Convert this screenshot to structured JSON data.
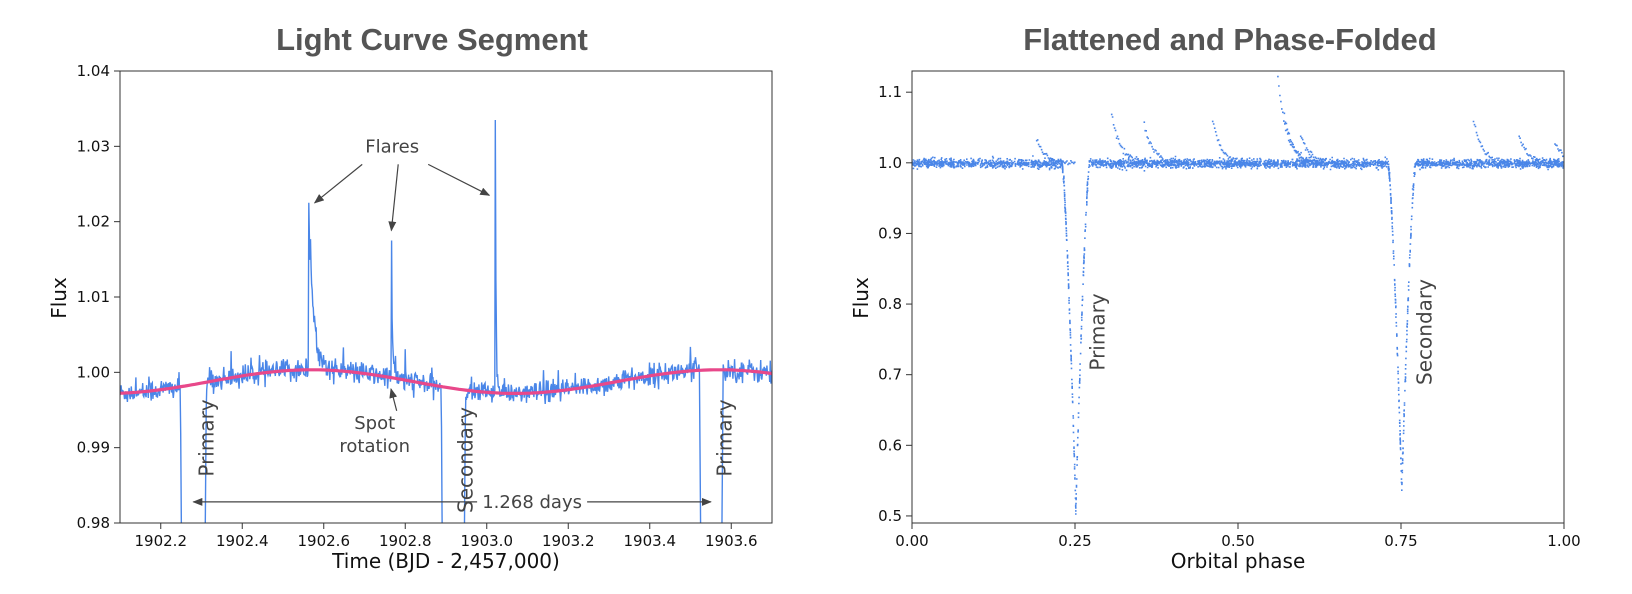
{
  "colors": {
    "flux": "#4a86e8",
    "spot_model": "#e8488a",
    "annotation": "#444444",
    "title": "#555555"
  },
  "chart_data": [
    {
      "type": "line",
      "title": "Light Curve Segment",
      "xlabel": "Time (BJD - 2,457,000)",
      "ylabel": "Flux",
      "xlim": [
        1902.1,
        1903.7
      ],
      "ylim": [
        0.98,
        1.04
      ],
      "xticks": [
        "1902.2",
        "1902.4",
        "1902.6",
        "1902.8",
        "1903.0",
        "1903.2",
        "1903.4",
        "1903.6"
      ],
      "yticks": [
        "0.98",
        "0.99",
        "1.00",
        "1.01",
        "1.02",
        "1.03",
        "1.04"
      ],
      "grid": false,
      "series": [
        {
          "name": "",
          "kind": "flux",
          "baseline": {
            "mean": 0.99877,
            "amplitude": 0.00157,
            "period_days": 1.0,
            "phase_ref": 1902.57
          }
        },
        {
          "name": "",
          "kind": "spot-model",
          "mean": 0.99877,
          "amplitude": 0.00157,
          "period_days": 1.0,
          "phase_ref": 1902.57
        }
      ],
      "eclipses": [
        {
          "t_start": 1902.248,
          "t_end": 1902.312,
          "depth_below": 0.98
        },
        {
          "t_start": 1902.888,
          "t_end": 1902.948,
          "depth_below": 0.98
        },
        {
          "t_start": 1903.522,
          "t_end": 1903.58,
          "depth_below": 0.98
        }
      ],
      "flares": [
        {
          "t": 1902.563,
          "peak": 1.0225,
          "decay_days": 0.012
        },
        {
          "t": 1902.766,
          "peak": 1.0175,
          "decay_days": 0.003
        },
        {
          "t": 1903.021,
          "peak": 1.0335,
          "decay_days": 0.002
        }
      ],
      "annotations": {
        "flares": "Flares",
        "spot_line1": "Spot",
        "spot_line2": "rotation",
        "primary_a": "Primary",
        "secondary": "Secondary",
        "primary_b": "Primary",
        "period": "1.268 days"
      },
      "annotation_anchors": {
        "flares_text": [
          1902.768,
          1.0292
        ],
        "flare_arrow_targets": [
          [
            1902.563,
            1.0225
          ],
          [
            1902.766,
            1.0175
          ],
          [
            1903.021,
            1.0235
          ]
        ],
        "spot_text": [
          1902.725,
          0.9925
        ],
        "spot_arrow_target": [
          1902.765,
          0.9978
        ],
        "period_span": [
          1902.28,
          1903.55
        ],
        "period_y": 0.9828
      }
    },
    {
      "type": "scatter",
      "title": "Flattened and Phase-Folded",
      "xlabel": "Orbital phase",
      "ylabel": "Flux",
      "xlim": [
        0.0,
        1.0
      ],
      "ylim": [
        0.49,
        1.13
      ],
      "xticks": [
        "0.00",
        "0.25",
        "0.50",
        "0.75",
        "1.00"
      ],
      "yticks": [
        "0.5",
        "0.6",
        "0.7",
        "0.8",
        "0.9",
        "1.0",
        "1.1"
      ],
      "grid": false,
      "eclipses": [
        {
          "center": 0.25,
          "half_width": 0.021,
          "min_flux": 0.51,
          "label": "Primary"
        },
        {
          "center": 0.75,
          "half_width": 0.021,
          "min_flux": 0.54,
          "label": "Secondary"
        }
      ],
      "flare_points": [
        [
          0.19,
          1.035
        ],
        [
          0.305,
          1.07
        ],
        [
          0.355,
          1.055
        ],
        [
          0.46,
          1.06
        ],
        [
          0.56,
          1.12
        ],
        [
          0.57,
          1.07
        ],
        [
          0.595,
          1.04
        ],
        [
          0.86,
          1.06
        ],
        [
          0.93,
          1.04
        ],
        [
          0.985,
          1.03
        ]
      ],
      "annotations": {
        "primary": "Primary",
        "secondary": "Secondary"
      }
    }
  ]
}
